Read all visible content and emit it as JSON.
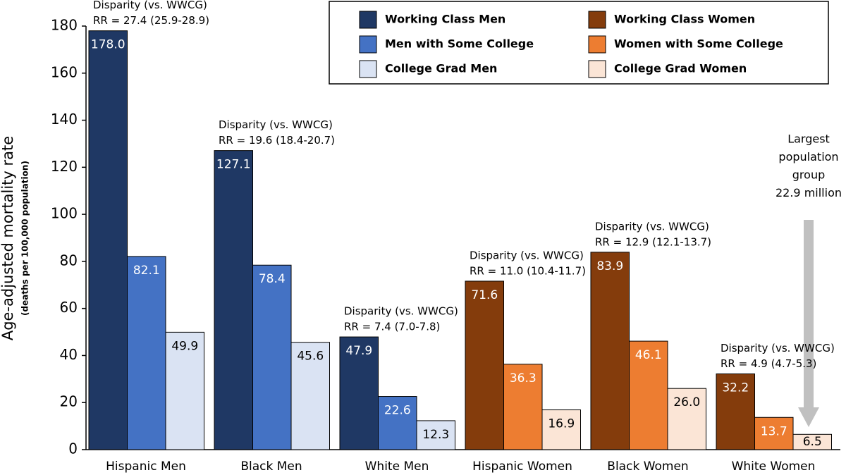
{
  "chart_data": {
    "type": "bar",
    "y_label": "Age-adjusted mortality rate",
    "y_sublabel": "(deaths per 100,000 population)",
    "categories": [
      "Hispanic Men",
      "Black Men",
      "White Men",
      "Hispanic Women",
      "Black Women",
      "White Women"
    ],
    "series": [
      {
        "name": "Working Class Men",
        "color": "#1f3864",
        "label_color": "#ffffff",
        "values": [
          178.0,
          127.1,
          47.9,
          null,
          null,
          null
        ],
        "value_labels": [
          "178.0",
          "127.1",
          "47.9",
          null,
          null,
          null
        ]
      },
      {
        "name": "Men with Some College",
        "color": "#4472c4",
        "label_color": "#ffffff",
        "values": [
          82.1,
          78.4,
          22.6,
          null,
          null,
          null
        ],
        "value_labels": [
          "82.1",
          "78.4",
          "22.6",
          null,
          null,
          null
        ]
      },
      {
        "name": "College Grad Men",
        "color": "#dae3f3",
        "label_color": "#000000",
        "values": [
          49.9,
          45.6,
          12.3,
          null,
          null,
          null
        ],
        "value_labels": [
          "49.9",
          "45.6",
          "12.3",
          null,
          null,
          null
        ]
      },
      {
        "name": "Working Class Women",
        "color": "#843c0c",
        "label_color": "#ffffff",
        "values": [
          null,
          null,
          null,
          71.6,
          83.9,
          32.2
        ],
        "value_labels": [
          null,
          null,
          null,
          "71.6",
          "83.9",
          "32.2"
        ]
      },
      {
        "name": "Women with Some College",
        "color": "#ed7d31",
        "label_color": "#ffffff",
        "values": [
          null,
          null,
          null,
          36.3,
          46.1,
          13.7
        ],
        "value_labels": [
          null,
          null,
          null,
          "36.3",
          "46.1",
          "13.7"
        ]
      },
      {
        "name": "College Grad Women",
        "color": "#fbe5d6",
        "label_color": "#000000",
        "values": [
          null,
          null,
          null,
          16.9,
          26.0,
          6.5
        ],
        "value_labels": [
          null,
          null,
          null,
          "16.9",
          "26.0",
          "6.5"
        ]
      }
    ],
    "disparity": [
      {
        "label": "Disparity (vs. WWCG)",
        "rr": "RR = 27.4 (25.9-28.9)"
      },
      {
        "label": "Disparity (vs. WWCG)",
        "rr": "RR = 19.6 (18.4-20.7)"
      },
      {
        "label": "Disparity (vs. WWCG)",
        "rr": "RR = 7.4 (7.0-7.8)"
      },
      {
        "label": "Disparity (vs. WWCG)",
        "rr": "RR = 11.0 (10.4-11.7)"
      },
      {
        "label": "Disparity (vs. WWCG)",
        "rr": "RR = 12.9 (12.1-13.7)"
      },
      {
        "label": "Disparity (vs. WWCG)",
        "rr": "RR = 4.9 (4.7-5.3)"
      }
    ],
    "callout": [
      "Largest",
      "population",
      "group",
      "22.9 million"
    ],
    "ylim": [
      0,
      180
    ],
    "yticks": [
      0,
      20,
      40,
      60,
      80,
      100,
      120,
      140,
      160,
      180
    ]
  }
}
